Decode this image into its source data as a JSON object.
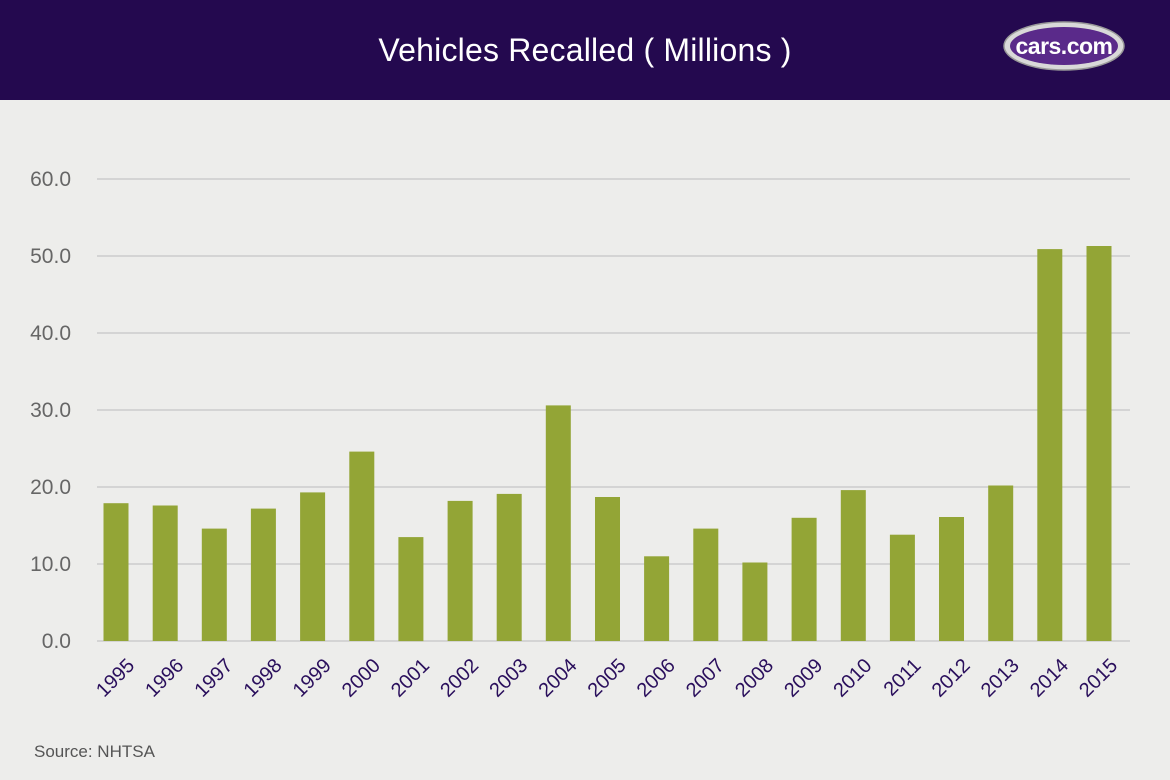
{
  "header": {
    "title": "Vehicles Recalled ( Millions )",
    "logo_text": "cars.com"
  },
  "source": "Source: NHTSA",
  "colors": {
    "header_bg": "#24094f",
    "bar": "#93a536",
    "background": "#ededeb",
    "grid": "#cccccc",
    "tick_y": "#666666",
    "tick_x": "#2a0f5c"
  },
  "chart_data": {
    "type": "bar",
    "title": "Vehicles Recalled ( Millions )",
    "xlabel": "",
    "ylabel": "",
    "ylim": [
      0,
      60
    ],
    "yticks": [
      "0.0",
      "10.0",
      "20.0",
      "30.0",
      "40.0",
      "50.0",
      "60.0"
    ],
    "categories": [
      "1995",
      "1996",
      "1997",
      "1998",
      "1999",
      "2000",
      "2001",
      "2002",
      "2003",
      "2004",
      "2005",
      "2006",
      "2007",
      "2008",
      "2009",
      "2010",
      "2011",
      "2012",
      "2013",
      "2014",
      "2015"
    ],
    "values": [
      17.9,
      17.6,
      14.6,
      17.2,
      19.3,
      24.6,
      13.5,
      18.2,
      19.1,
      30.6,
      18.7,
      11.0,
      14.6,
      10.2,
      16.0,
      19.6,
      13.8,
      16.1,
      20.2,
      50.9,
      51.3
    ],
    "grid": true,
    "legend": "none"
  }
}
